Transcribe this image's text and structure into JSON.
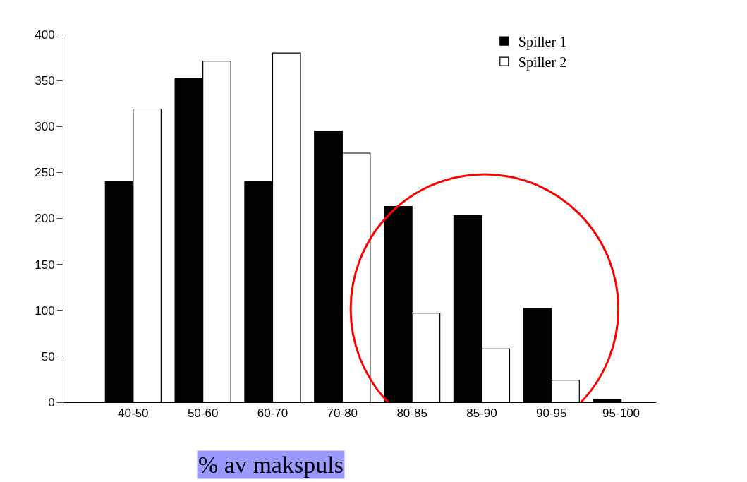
{
  "chart_data": {
    "type": "bar",
    "xlabel": "% av makspuls",
    "categories": [
      "40-50",
      "50-60",
      "60-70",
      "70-80",
      "80-85",
      "85-90",
      "90-95",
      "95-100"
    ],
    "series": [
      {
        "name": "Spiller 1",
        "color": "#000000",
        "values": [
          240,
          352,
          240,
          295,
          213,
          203,
          102,
          3
        ]
      },
      {
        "name": "Spiller 2",
        "color": "#ffffff",
        "values": [
          319,
          371,
          380,
          271,
          97,
          58,
          24,
          0
        ]
      }
    ],
    "ylim": [
      0,
      400
    ],
    "yticks": [
      0,
      50,
      100,
      150,
      200,
      250,
      300,
      350,
      400
    ],
    "legend": "top right"
  }
}
